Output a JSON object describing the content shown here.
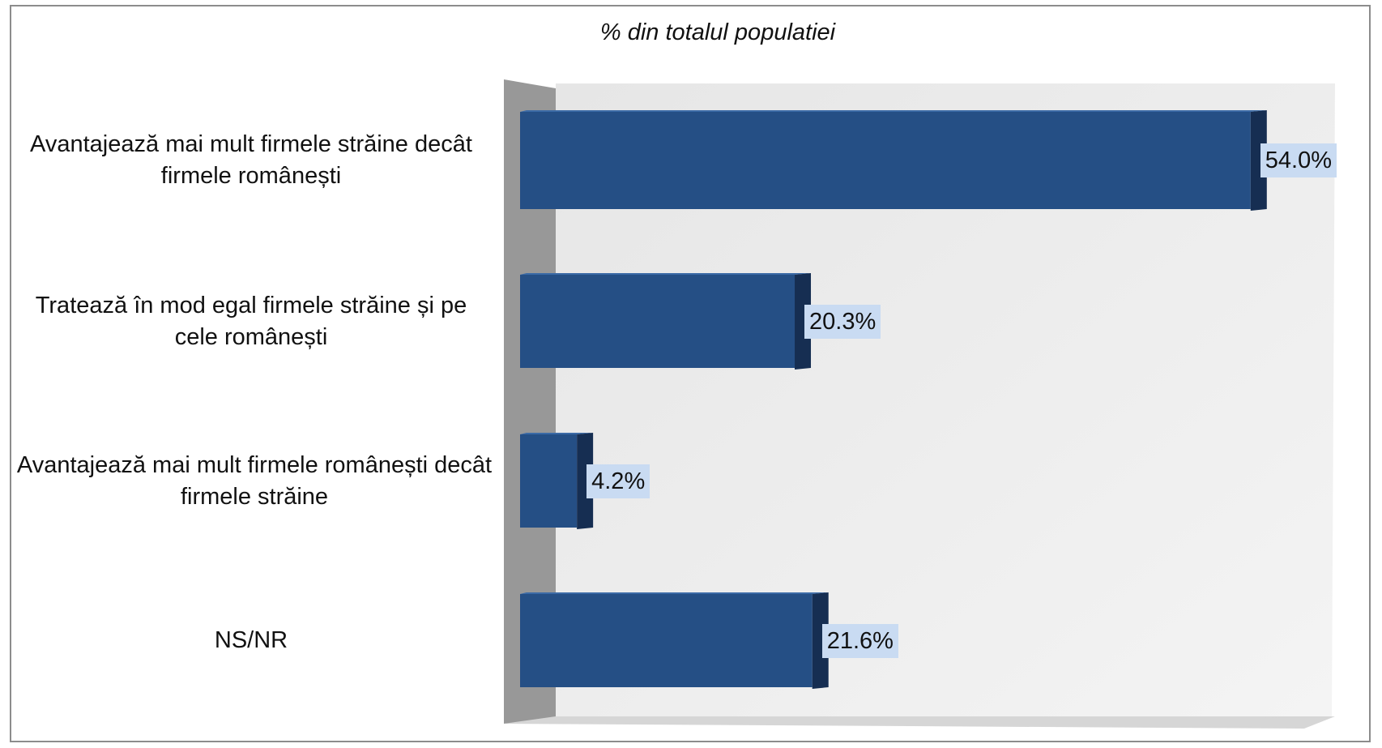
{
  "chart_data": {
    "type": "bar",
    "orientation": "horizontal",
    "title": "% din totalul populatiei",
    "categories": [
      "Avantajează mai mult firmele străine decât firmele românești",
      "Tratează în mod egal firmele străine și pe cele românești",
      "Avantajează mai mult firmele românești decât firmele străine",
      "NS/NR"
    ],
    "values": [
      54.0,
      20.3,
      4.2,
      21.6
    ],
    "value_labels": [
      "54.0%",
      "20.3%",
      "4.2%",
      "21.6%"
    ],
    "xlim": [
      0,
      60
    ],
    "gridlines": false,
    "legend": "none",
    "style": "3d",
    "colors": {
      "bar_front": "#254f85",
      "bar_side": "#162e52",
      "label_background": "#c9dbf2",
      "back_wall": "#ececec",
      "side_wall": "#989898"
    }
  }
}
